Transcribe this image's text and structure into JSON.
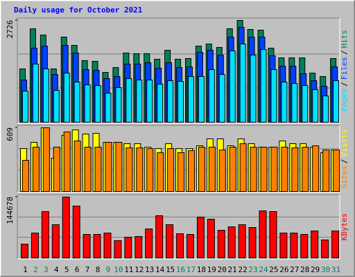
{
  "chart_data": [
    {
      "type": "bar",
      "title": "Daily usage for October 2021",
      "legend_separator": "/",
      "series": [
        {
          "name": "Hits",
          "color": "#00805C",
          "values": [
            1428,
            2503,
            2336,
            1428,
            2281,
            2058,
            1650,
            1632,
            1335,
            1465,
            1854,
            1836,
            1836,
            1687,
            1928,
            1687,
            1706,
            2040,
            2095,
            2003,
            2503,
            2726,
            2485,
            2466,
            1984,
            1724,
            1724,
            1724,
            1316,
            1224,
            1706
          ]
        },
        {
          "name": "Files",
          "color": "#0040FF",
          "values": [
            1131,
            1984,
            2039,
            1279,
            2058,
            1854,
            1409,
            1391,
            1168,
            1224,
            1557,
            1557,
            1594,
            1446,
            1594,
            1465,
            1483,
            1873,
            1928,
            1798,
            2280,
            2540,
            2280,
            2280,
            1780,
            1502,
            1502,
            1298,
            1112,
            964,
            1483
          ]
        },
        {
          "name": "Pages",
          "color": "#00E0FF",
          "values": [
            834,
            1557,
            1428,
            853,
            1316,
            1075,
            1001,
            983,
            779,
            927,
            1168,
            1131,
            1131,
            1020,
            1112,
            1094,
            1224,
            1224,
            1409,
            1279,
            1910,
            2095,
            1798,
            1947,
            1409,
            1075,
            1038,
            983,
            871,
            705,
            1112
          ]
        }
      ],
      "ylim": [
        0,
        2726
      ],
      "yticks": [
        2726
      ]
    },
    {
      "type": "bar",
      "legend_separator": "/",
      "series": [
        {
          "name": "Visits",
          "color": "#FFFF00",
          "values": [
            410,
            470,
            609,
            318,
            536,
            589,
            549,
            556,
            470,
            470,
            457,
            457,
            424,
            410,
            457,
            410,
            410,
            437,
            503,
            503,
            437,
            503,
            457,
            424,
            424,
            483,
            457,
            457,
            424,
            371,
            397
          ]
        },
        {
          "name": "Sites",
          "color": "#FF8000",
          "values": [
            298,
            424,
            609,
            424,
            569,
            483,
            424,
            424,
            470,
            470,
            417,
            417,
            410,
            371,
            410,
            371,
            391,
            424,
            424,
            397,
            424,
            457,
            424,
            424,
            424,
            424,
            417,
            424,
            437,
            397,
            397
          ]
        }
      ],
      "ylim": [
        0,
        609
      ],
      "yticks": [
        609
      ]
    },
    {
      "type": "bar",
      "categories": [
        "1",
        "2",
        "3",
        "4",
        "5",
        "6",
        "7",
        "8",
        "9",
        "10",
        "11",
        "12",
        "13",
        "14",
        "15",
        "16",
        "17",
        "18",
        "19",
        "20",
        "21",
        "22",
        "23",
        "24",
        "25",
        "26",
        "27",
        "28",
        "29",
        "30",
        "31"
      ],
      "category_colors": [
        "#000000",
        "#00805C",
        "#00805C",
        "#000000",
        "#000000",
        "#000000",
        "#000000",
        "#000000",
        "#00805C",
        "#00805C",
        "#000000",
        "#000000",
        "#000000",
        "#000000",
        "#000000",
        "#00805C",
        "#00805C",
        "#000000",
        "#000000",
        "#000000",
        "#000000",
        "#000000",
        "#00805C",
        "#00805C",
        "#000000",
        "#000000",
        "#000000",
        "#000000",
        "#000000",
        "#00805C",
        "#00805C"
      ],
      "series": [
        {
          "name": "KBytes",
          "color": "#FF0000",
          "values": [
            32880,
            59184,
            110148,
            78912,
            144678,
            123300,
            55896,
            55896,
            59184,
            41100,
            49320,
            50964,
            69048,
            100284,
            78912,
            57540,
            55896,
            96996,
            92064,
            65760,
            73980,
            78912,
            72336,
            111792,
            110148,
            59184,
            59184,
            55896,
            64116,
            42744,
            64116
          ]
        }
      ],
      "ylim": [
        0,
        144678
      ],
      "yticks": [
        144678
      ]
    }
  ]
}
